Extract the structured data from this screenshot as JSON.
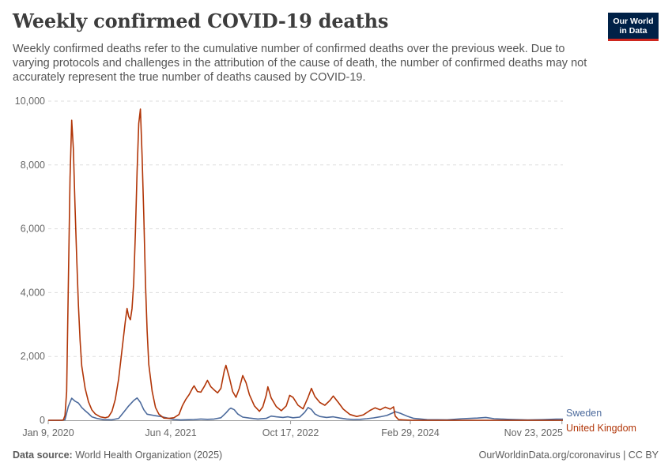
{
  "header": {
    "title": "Weekly confirmed COVID-19 deaths",
    "subtitle": "Weekly confirmed deaths refer to the cumulative number of confirmed deaths over the previous week. Due to varying protocols and challenges in the attribution of the cause of death, the number of confirmed deaths may not accurately represent the true number of deaths caused by COVID-19.",
    "logo_line1": "Our World",
    "logo_line2": "in Data"
  },
  "footer": {
    "source_label": "Data source:",
    "source_text": "World Health Organization (2025)",
    "right_text": "OurWorldinData.org/coronavirus | CC BY"
  },
  "chart_data": {
    "type": "line",
    "title": "Weekly confirmed COVID-19 deaths",
    "xlabel": "",
    "ylabel": "",
    "ylim": [
      0,
      10000
    ],
    "yticks": [
      0,
      2000,
      4000,
      6000,
      8000,
      10000
    ],
    "ytick_labels": [
      "0",
      "2,000",
      "4,000",
      "6,000",
      "8,000",
      "10,000"
    ],
    "xlim": [
      "2020-01-09",
      "2025-11-27"
    ],
    "xticks": [
      "2020-01-09",
      "2021-06-04",
      "2022-10-17",
      "2024-02-29",
      "2025-11-23"
    ],
    "xtick_labels": [
      "Jan 9, 2020",
      "Jun 4, 2021",
      "Oct 17, 2022",
      "Feb 29, 2024",
      "Nov 23, 2025"
    ],
    "grid": true,
    "legend": "end-of-line labels",
    "series": [
      {
        "name": "United Kingdom",
        "color": "#b13507",
        "points": [
          [
            "2020-01-09",
            0
          ],
          [
            "2020-03-05",
            0
          ],
          [
            "2020-03-12",
            10
          ],
          [
            "2020-03-19",
            150
          ],
          [
            "2020-03-26",
            900
          ],
          [
            "2020-04-02",
            4200
          ],
          [
            "2020-04-09",
            7600
          ],
          [
            "2020-04-16",
            9400
          ],
          [
            "2020-04-23",
            8500
          ],
          [
            "2020-04-30",
            6700
          ],
          [
            "2020-05-07",
            5100
          ],
          [
            "2020-05-14",
            3600
          ],
          [
            "2020-05-21",
            2500
          ],
          [
            "2020-05-28",
            1700
          ],
          [
            "2020-06-11",
            1000
          ],
          [
            "2020-06-25",
            580
          ],
          [
            "2020-07-09",
            330
          ],
          [
            "2020-07-23",
            200
          ],
          [
            "2020-08-13",
            110
          ],
          [
            "2020-09-03",
            80
          ],
          [
            "2020-09-17",
            110
          ],
          [
            "2020-10-01",
            280
          ],
          [
            "2020-10-15",
            650
          ],
          [
            "2020-10-29",
            1300
          ],
          [
            "2020-11-12",
            2200
          ],
          [
            "2020-11-26",
            3100
          ],
          [
            "2020-12-03",
            3500
          ],
          [
            "2020-12-10",
            3250
          ],
          [
            "2020-12-17",
            3150
          ],
          [
            "2020-12-24",
            3500
          ],
          [
            "2020-12-31",
            4300
          ],
          [
            "2021-01-07",
            5900
          ],
          [
            "2021-01-14",
            7800
          ],
          [
            "2021-01-21",
            9300
          ],
          [
            "2021-01-28",
            9750
          ],
          [
            "2021-02-04",
            8300
          ],
          [
            "2021-02-11",
            6400
          ],
          [
            "2021-02-18",
            4300
          ],
          [
            "2021-02-25",
            2800
          ],
          [
            "2021-03-04",
            1750
          ],
          [
            "2021-03-18",
            900
          ],
          [
            "2021-04-01",
            400
          ],
          [
            "2021-04-15",
            190
          ],
          [
            "2021-05-06",
            70
          ],
          [
            "2021-05-27",
            60
          ],
          [
            "2021-06-17",
            80
          ],
          [
            "2021-07-08",
            180
          ],
          [
            "2021-07-22",
            450
          ],
          [
            "2021-08-05",
            650
          ],
          [
            "2021-08-19",
            800
          ],
          [
            "2021-09-02",
            1000
          ],
          [
            "2021-09-09",
            1080
          ],
          [
            "2021-09-23",
            900
          ],
          [
            "2021-10-07",
            880
          ],
          [
            "2021-10-21",
            1050
          ],
          [
            "2021-11-04",
            1250
          ],
          [
            "2021-11-18",
            1050
          ],
          [
            "2021-12-02",
            950
          ],
          [
            "2021-12-16",
            860
          ],
          [
            "2021-12-30",
            1000
          ],
          [
            "2022-01-13",
            1550
          ],
          [
            "2022-01-20",
            1720
          ],
          [
            "2022-02-03",
            1350
          ],
          [
            "2022-02-17",
            900
          ],
          [
            "2022-03-03",
            720
          ],
          [
            "2022-03-17",
            1000
          ],
          [
            "2022-03-31",
            1400
          ],
          [
            "2022-04-14",
            1180
          ],
          [
            "2022-04-28",
            800
          ],
          [
            "2022-05-19",
            450
          ],
          [
            "2022-06-09",
            280
          ],
          [
            "2022-06-23",
            420
          ],
          [
            "2022-07-07",
            780
          ],
          [
            "2022-07-14",
            1050
          ],
          [
            "2022-07-28",
            700
          ],
          [
            "2022-08-18",
            430
          ],
          [
            "2022-09-08",
            300
          ],
          [
            "2022-09-29",
            450
          ],
          [
            "2022-10-13",
            780
          ],
          [
            "2022-10-27",
            720
          ],
          [
            "2022-11-17",
            470
          ],
          [
            "2022-12-08",
            360
          ],
          [
            "2022-12-29",
            720
          ],
          [
            "2023-01-12",
            1000
          ],
          [
            "2023-01-26",
            750
          ],
          [
            "2023-02-16",
            560
          ],
          [
            "2023-03-09",
            470
          ],
          [
            "2023-03-30",
            620
          ],
          [
            "2023-04-13",
            760
          ],
          [
            "2023-05-04",
            560
          ],
          [
            "2023-05-25",
            350
          ],
          [
            "2023-06-22",
            180
          ],
          [
            "2023-07-20",
            120
          ],
          [
            "2023-08-17",
            170
          ],
          [
            "2023-09-14",
            310
          ],
          [
            "2023-10-05",
            390
          ],
          [
            "2023-10-26",
            330
          ],
          [
            "2023-11-16",
            410
          ],
          [
            "2023-12-07",
            350
          ],
          [
            "2023-12-21",
            420
          ],
          [
            "2023-12-28",
            130
          ],
          [
            "2024-01-11",
            20
          ],
          [
            "2024-03-07",
            0
          ],
          [
            "2025-11-27",
            0
          ]
        ]
      },
      {
        "name": "Sweden",
        "color": "#4c6a9c",
        "points": [
          [
            "2020-01-09",
            0
          ],
          [
            "2020-03-05",
            0
          ],
          [
            "2020-03-19",
            20
          ],
          [
            "2020-04-02",
            430
          ],
          [
            "2020-04-16",
            690
          ],
          [
            "2020-04-30",
            600
          ],
          [
            "2020-05-14",
            540
          ],
          [
            "2020-05-28",
            400
          ],
          [
            "2020-06-11",
            300
          ],
          [
            "2020-06-25",
            210
          ],
          [
            "2020-07-09",
            110
          ],
          [
            "2020-07-30",
            60
          ],
          [
            "2020-08-27",
            20
          ],
          [
            "2020-10-01",
            15
          ],
          [
            "2020-10-29",
            60
          ],
          [
            "2020-11-19",
            250
          ],
          [
            "2020-12-10",
            450
          ],
          [
            "2020-12-31",
            620
          ],
          [
            "2021-01-14",
            700
          ],
          [
            "2021-01-28",
            560
          ],
          [
            "2021-02-11",
            330
          ],
          [
            "2021-02-25",
            190
          ],
          [
            "2021-03-25",
            150
          ],
          [
            "2021-04-22",
            120
          ],
          [
            "2021-05-20",
            70
          ],
          [
            "2021-06-17",
            25
          ],
          [
            "2021-07-15",
            10
          ],
          [
            "2021-09-09",
            25
          ],
          [
            "2021-10-07",
            40
          ],
          [
            "2021-11-04",
            30
          ],
          [
            "2021-12-02",
            40
          ],
          [
            "2021-12-30",
            80
          ],
          [
            "2022-01-20",
            230
          ],
          [
            "2022-02-03",
            350
          ],
          [
            "2022-02-10",
            380
          ],
          [
            "2022-02-24",
            330
          ],
          [
            "2022-03-10",
            200
          ],
          [
            "2022-03-31",
            100
          ],
          [
            "2022-04-28",
            70
          ],
          [
            "2022-06-02",
            40
          ],
          [
            "2022-07-07",
            60
          ],
          [
            "2022-07-28",
            130
          ],
          [
            "2022-08-18",
            110
          ],
          [
            "2022-09-15",
            90
          ],
          [
            "2022-10-06",
            110
          ],
          [
            "2022-10-27",
            80
          ],
          [
            "2022-11-24",
            100
          ],
          [
            "2022-12-15",
            250
          ],
          [
            "2022-12-29",
            400
          ],
          [
            "2023-01-12",
            340
          ],
          [
            "2023-01-26",
            200
          ],
          [
            "2023-02-16",
            120
          ],
          [
            "2023-03-16",
            90
          ],
          [
            "2023-04-13",
            110
          ],
          [
            "2023-05-11",
            70
          ],
          [
            "2023-06-08",
            40
          ],
          [
            "2023-07-06",
            25
          ],
          [
            "2023-08-03",
            30
          ],
          [
            "2023-08-31",
            50
          ],
          [
            "2023-09-28",
            75
          ],
          [
            "2023-10-26",
            110
          ],
          [
            "2023-11-23",
            150
          ],
          [
            "2023-12-14",
            220
          ],
          [
            "2023-12-28",
            270
          ],
          [
            "2024-01-18",
            220
          ],
          [
            "2024-02-15",
            130
          ],
          [
            "2024-03-14",
            60
          ],
          [
            "2024-05-09",
            20
          ],
          [
            "2024-08-01",
            15
          ],
          [
            "2024-10-03",
            50
          ],
          [
            "2024-11-07",
            60
          ],
          [
            "2024-12-05",
            70
          ],
          [
            "2025-01-09",
            90
          ],
          [
            "2025-02-13",
            50
          ],
          [
            "2025-04-10",
            30
          ],
          [
            "2025-07-03",
            10
          ],
          [
            "2025-09-04",
            20
          ],
          [
            "2025-10-30",
            35
          ],
          [
            "2025-11-27",
            38
          ]
        ]
      }
    ]
  }
}
